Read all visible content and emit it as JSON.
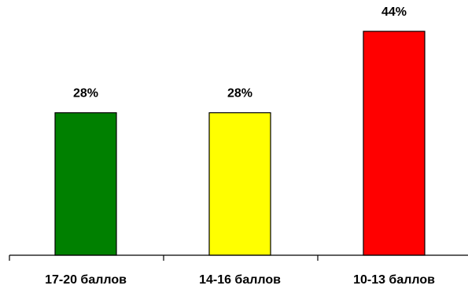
{
  "chart_data": {
    "type": "bar",
    "categories": [
      "17-20 баллов",
      "14-16 баллов",
      "10-13 баллов"
    ],
    "values": [
      28,
      28,
      44
    ],
    "value_labels": [
      "28%",
      "28%",
      "44%"
    ],
    "colors": [
      "#008000",
      "#FFFF00",
      "#FF0000"
    ],
    "title": "",
    "xlabel": "",
    "ylabel": "",
    "ylim": [
      0,
      50
    ],
    "grid": false,
    "legend": "none"
  }
}
